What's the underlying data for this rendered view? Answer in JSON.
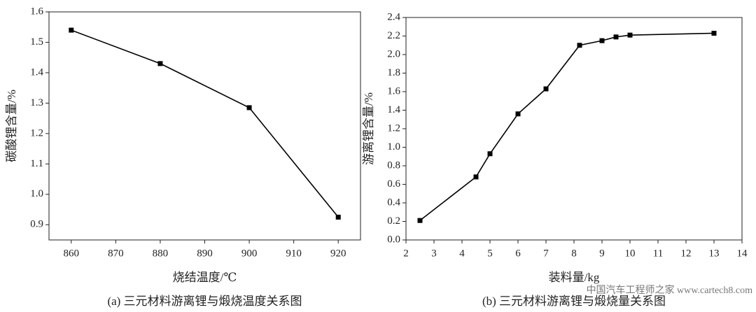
{
  "chart_data": [
    {
      "type": "line",
      "caption": "(a) 三元材料游离锂与煅烧温度关系图",
      "xlabel": "烧结温度/℃",
      "ylabel": "碳酸锂含量/%",
      "x": [
        860,
        880,
        900,
        920
      ],
      "values": [
        1.54,
        1.43,
        1.285,
        0.925
      ],
      "color": "#000000",
      "xlim": [
        855,
        925
      ],
      "xticks": [
        860,
        870,
        880,
        890,
        900,
        910,
        920
      ],
      "ylim": [
        0.85,
        1.6
      ],
      "yticks": [
        0.9,
        {
          "value": 1.0,
          "label": "1.0"
        },
        1.1,
        1.2,
        1.3,
        1.4,
        1.5,
        1.6
      ]
    },
    {
      "type": "line",
      "caption": "(b) 三元材料游离锂与煅烧量关系图",
      "xlabel": "装料量/kg",
      "ylabel": "游离锂含量/%",
      "x": [
        2.5,
        4.5,
        5,
        6,
        7,
        8.2,
        9,
        9.5,
        10,
        13
      ],
      "values": [
        0.21,
        0.68,
        0.93,
        1.36,
        1.63,
        2.1,
        2.15,
        2.19,
        2.21,
        2.23
      ],
      "color": "#000000",
      "xlim": [
        2,
        14
      ],
      "xticks": [
        2,
        3,
        4,
        5,
        6,
        7,
        8,
        9,
        10,
        11,
        12,
        13,
        14
      ],
      "ylim": [
        0,
        2.4
      ],
      "yticks": [
        {
          "value": 0,
          "label": "0.0"
        },
        0.2,
        0.4,
        0.6,
        0.8,
        {
          "value": 1.0,
          "label": "1.0"
        },
        1.2,
        1.4,
        1.6,
        1.8,
        {
          "value": 2.0,
          "label": "2.0"
        },
        2.2,
        2.4
      ]
    }
  ],
  "watermark": "中国汽车工程师之家 www.cartech8.com"
}
